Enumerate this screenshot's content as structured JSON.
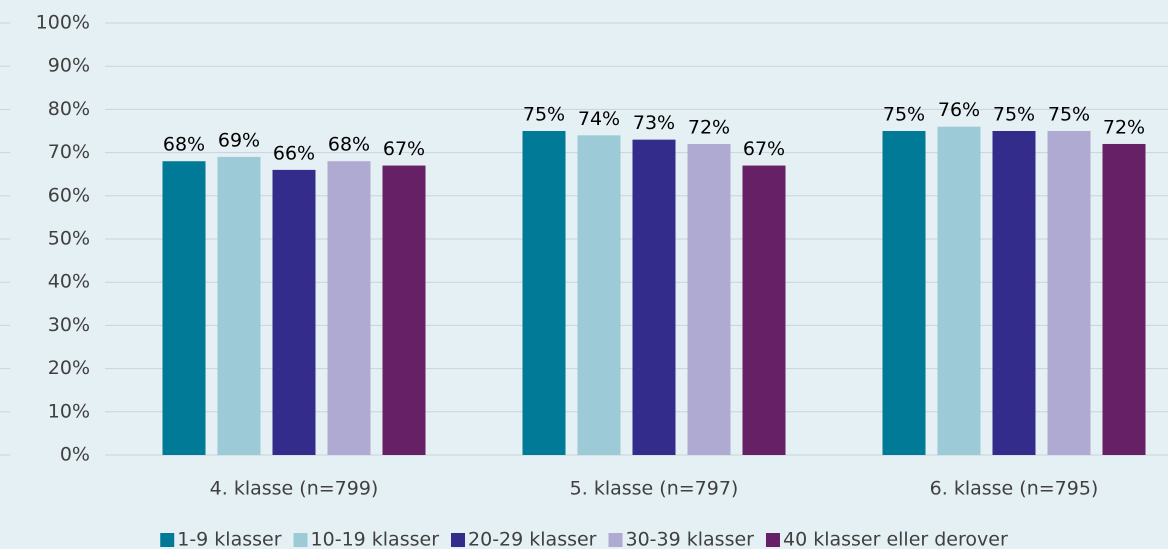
{
  "chart_data": {
    "type": "bar",
    "categories": [
      "4. klasse (n=799)",
      "5. klasse (n=797)",
      "6. klasse (n=795)"
    ],
    "series": [
      {
        "name": "1-9 klasser",
        "color": "#007a96",
        "values": [
          68,
          75,
          75
        ],
        "value_labels": [
          "68%",
          "75%",
          "75%"
        ]
      },
      {
        "name": "10-19 klasser",
        "color": "#9ccad6",
        "values": [
          69,
          74,
          76
        ],
        "value_labels": [
          "69%",
          "74%",
          "76%"
        ]
      },
      {
        "name": "20-29 klasser",
        "color": "#332c8a",
        "values": [
          66,
          73,
          75
        ],
        "value_labels": [
          "66%",
          "73%",
          "75%"
        ]
      },
      {
        "name": "30-39 klasser",
        "color": "#aeaad2",
        "values": [
          68,
          72,
          75
        ],
        "value_labels": [
          "68%",
          "72%",
          "75%"
        ]
      },
      {
        "name": "40 klasser eller derover",
        "color": "#662065",
        "values": [
          67,
          67,
          72
        ],
        "value_labels": [
          "67%",
          "67%",
          "72%"
        ]
      }
    ],
    "ylim": [
      0,
      100
    ],
    "yticks": [
      {
        "value": 0,
        "label": "0%"
      },
      {
        "value": 10,
        "label": "10%"
      },
      {
        "value": 20,
        "label": "20%"
      },
      {
        "value": 30,
        "label": "30%"
      },
      {
        "value": 40,
        "label": "40%"
      },
      {
        "value": 50,
        "label": "50%"
      },
      {
        "value": 60,
        "label": "60%"
      },
      {
        "value": 70,
        "label": "70%"
      },
      {
        "value": 80,
        "label": "80%"
      },
      {
        "value": 90,
        "label": "90%"
      },
      {
        "value": 100,
        "label": "100%"
      }
    ],
    "grid": true,
    "legend": "bottom"
  }
}
